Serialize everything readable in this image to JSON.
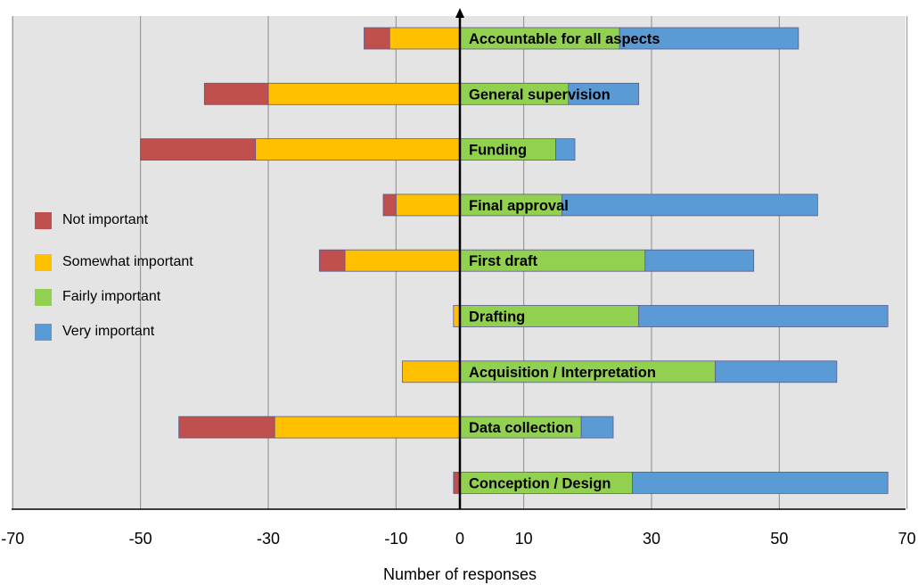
{
  "chart_data": {
    "type": "bar",
    "orientation": "horizontal",
    "stacked": "diverging",
    "xlabel": "Number of responses",
    "ylabel": "",
    "xlim": [
      -70,
      70
    ],
    "xticks": [
      -70,
      -50,
      -30,
      -10,
      0,
      10,
      30,
      50,
      70
    ],
    "grid": true,
    "legend_position": "left",
    "categories": [
      "Accountable for all aspects",
      "General supervision",
      "Funding",
      "Final approval",
      "First draft",
      "Drafting",
      "Acquisition / Interpretation",
      "Data collection",
      "Conception / Design"
    ],
    "series": [
      {
        "name": "Not important",
        "color": "#C0504D",
        "side": "negative",
        "values": [
          4,
          10,
          18,
          2,
          4,
          0,
          0,
          15,
          1
        ]
      },
      {
        "name": "Somewhat important",
        "color": "#FFC000",
        "side": "negative",
        "values": [
          11,
          30,
          32,
          10,
          18,
          1,
          9,
          29,
          0
        ]
      },
      {
        "name": "Fairly important",
        "color": "#92D050",
        "side": "positive",
        "values": [
          25,
          17,
          15,
          16,
          29,
          28,
          40,
          19,
          27
        ]
      },
      {
        "name": "Very important",
        "color": "#5B9BD5",
        "side": "positive",
        "values": [
          28,
          11,
          3,
          40,
          17,
          39,
          19,
          5,
          40
        ]
      }
    ]
  }
}
